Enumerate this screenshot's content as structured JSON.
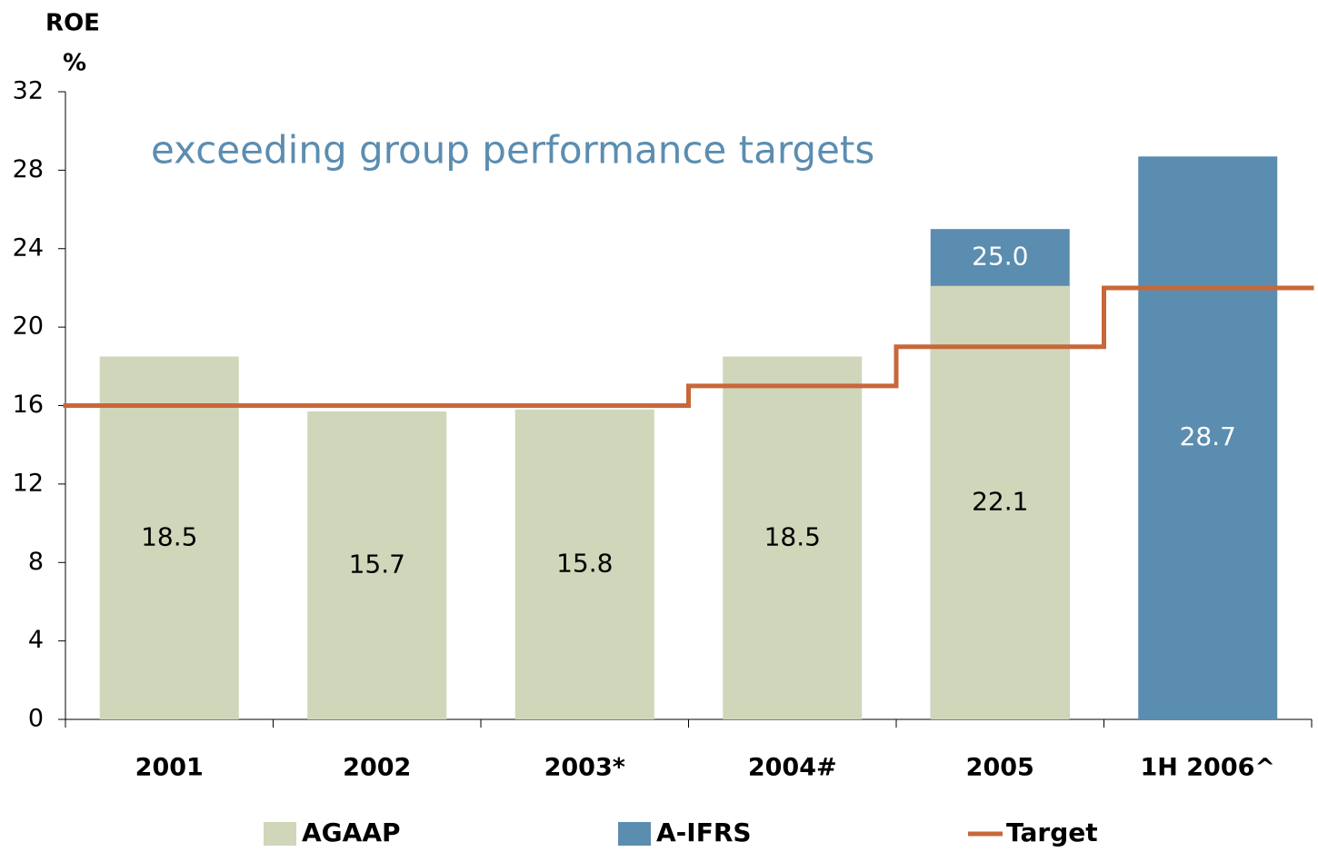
{
  "chart_data": {
    "type": "bar",
    "title": "exceeding group performance targets",
    "y_label": "ROE",
    "y_unit": "%",
    "categories": [
      "2001",
      "2002",
      "2003*",
      "2004#",
      "2005",
      "1H 2006^"
    ],
    "series": [
      {
        "name": "A-IFRS",
        "color": "#5b8db0",
        "values": [
          null,
          null,
          null,
          null,
          25.0,
          28.7
        ],
        "value_labels": [
          null,
          null,
          null,
          null,
          "25.0",
          "28.7"
        ]
      },
      {
        "name": "AGAAP",
        "color": "#d0d6b9",
        "values": [
          18.5,
          15.7,
          15.8,
          18.5,
          22.1,
          null
        ],
        "value_labels": [
          "18.5",
          "15.7",
          "15.8",
          "18.5",
          "22.1",
          null
        ]
      },
      {
        "name": "Target",
        "color": "#c8673a",
        "type": "step",
        "values": [
          16,
          16,
          16,
          17,
          19,
          22
        ]
      }
    ],
    "legend_order": [
      "AGAAP",
      "A-IFRS",
      "Target"
    ],
    "ylim": [
      0,
      32
    ],
    "yticks": [
      0,
      4,
      8,
      12,
      16,
      20,
      24,
      28,
      32
    ]
  }
}
